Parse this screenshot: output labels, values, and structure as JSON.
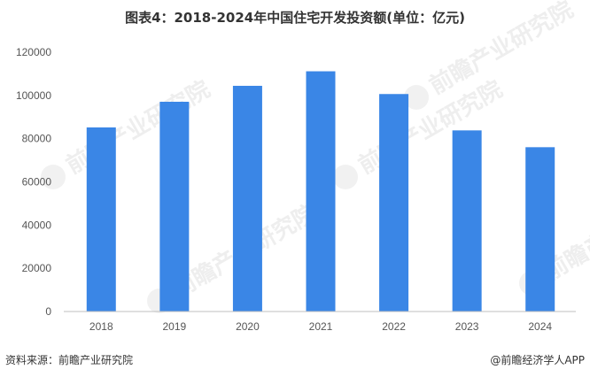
{
  "chart_data": {
    "type": "bar",
    "title": "图表4：2018-2024年中国住宅开发投资额(单位：亿元)",
    "categories": [
      "2018",
      "2019",
      "2020",
      "2021",
      "2022",
      "2023",
      "2024"
    ],
    "values": [
      85192,
      97071,
      104446,
      111173,
      100646,
      83820,
      76040
    ],
    "ylim": [
      0,
      120000
    ],
    "yticks": [
      "0",
      "20000",
      "40000",
      "60000",
      "80000",
      "100000",
      "120000"
    ],
    "xlabel": "",
    "ylabel": "",
    "grid": false,
    "bar_color": "#3a86e6",
    "axis_color": "#bfbfbf"
  },
  "footer": {
    "source": "资料来源：前瞻产业研究院",
    "brand": "@前瞻经济学人APP"
  },
  "watermark": {
    "text": "前瞻产业研究院"
  }
}
